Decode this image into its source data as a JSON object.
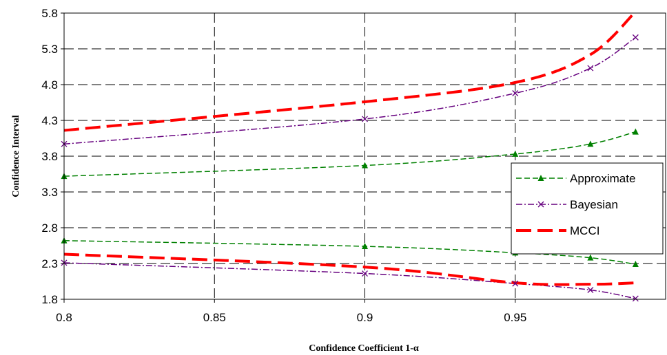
{
  "chart_data": {
    "type": "line",
    "title": "",
    "xlabel": "Confidence Coefficient 1-α",
    "ylabel": "Confidence Interval",
    "xlim": [
      0.8,
      0.99
    ],
    "ylim": [
      1.8,
      5.8
    ],
    "x_ticks": [
      "0.8",
      "0.85",
      "0.9",
      "0.95"
    ],
    "y_ticks": [
      "5.8",
      "5.3",
      "4.8",
      "4.3",
      "3.8",
      "3.3",
      "2.8",
      "2.3",
      "1.8"
    ],
    "grid": true,
    "legend_position": "right",
    "series": [
      {
        "name": "Approximate",
        "color": "#008000",
        "marker": "triangle",
        "dash": "dashed-fine",
        "upper": {
          "x": [
            0.8,
            0.9,
            0.95,
            0.975,
            0.99
          ],
          "y": [
            3.52,
            3.67,
            3.83,
            3.97,
            4.14
          ]
        },
        "lower": {
          "x": [
            0.8,
            0.9,
            0.95,
            0.975,
            0.99
          ],
          "y": [
            2.62,
            2.54,
            2.45,
            2.38,
            2.29
          ]
        }
      },
      {
        "name": "Bayesian",
        "color": "#66007f",
        "marker": "x",
        "dash": "dash-dot",
        "upper": {
          "x": [
            0.8,
            0.9,
            0.95,
            0.975,
            0.99
          ],
          "y": [
            3.97,
            4.32,
            4.68,
            5.03,
            5.46
          ]
        },
        "lower": {
          "x": [
            0.8,
            0.9,
            0.95,
            0.975,
            0.99
          ],
          "y": [
            2.31,
            2.16,
            2.02,
            1.93,
            1.81
          ]
        }
      },
      {
        "name": "MCCI",
        "color": "#ff0000",
        "marker": "none",
        "dash": "long-dash",
        "upper": {
          "x": [
            0.8,
            0.9,
            0.95,
            0.975,
            0.99
          ],
          "y": [
            4.16,
            4.56,
            4.83,
            5.22,
            5.82
          ]
        },
        "lower": {
          "x": [
            0.8,
            0.9,
            0.95,
            0.975,
            0.99
          ],
          "y": [
            2.43,
            2.25,
            2.03,
            2.01,
            2.03
          ]
        }
      }
    ]
  }
}
